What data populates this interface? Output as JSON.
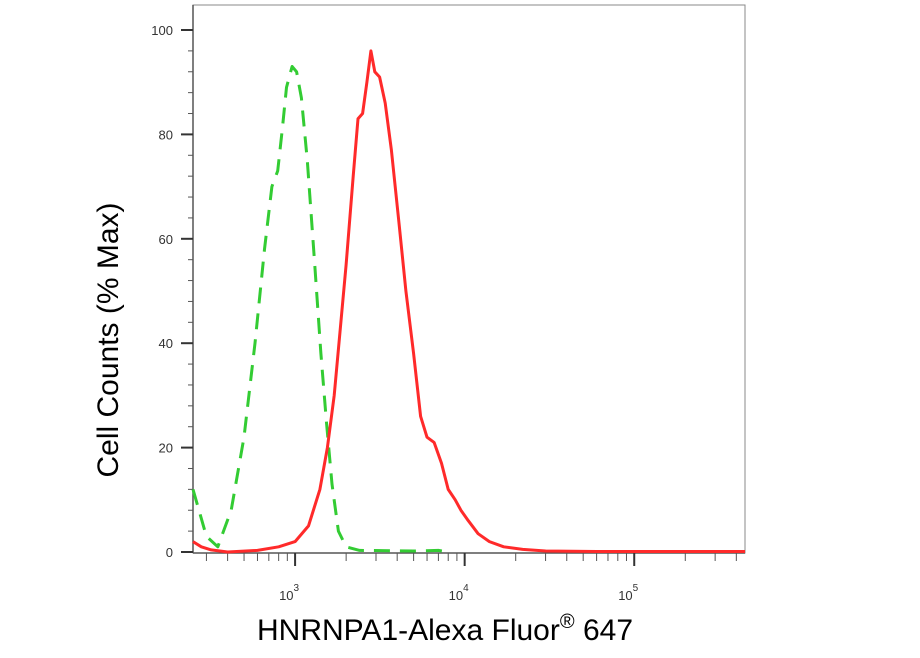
{
  "chart_data": {
    "type": "line",
    "xlabel_main": "HNRNPA1-Alexa Fluor",
    "xlabel_reg": "®",
    "xlabel_tail": " 647",
    "ylabel": "Cell Counts (% Max)",
    "x_scale": "log",
    "xlim": [
      250,
      450000
    ],
    "ylim": [
      0,
      100
    ],
    "y_ticks": [
      "0",
      "20",
      "40",
      "60",
      "80",
      "100"
    ],
    "x_ticks": [
      {
        "base": "10",
        "exp": "3",
        "value": 1000
      },
      {
        "base": "10",
        "exp": "4",
        "value": 10000
      },
      {
        "base": "10",
        "exp": "5",
        "value": 100000
      }
    ],
    "grid": false,
    "series": [
      {
        "color": "#33cc33",
        "style": "dashed",
        "points": [
          [
            250,
            12
          ],
          [
            300,
            3
          ],
          [
            350,
            1
          ],
          [
            420,
            8
          ],
          [
            500,
            22
          ],
          [
            580,
            40
          ],
          [
            660,
            58
          ],
          [
            730,
            70
          ],
          [
            790,
            73
          ],
          [
            840,
            81
          ],
          [
            890,
            89
          ],
          [
            960,
            93
          ],
          [
            1020,
            92
          ],
          [
            1090,
            87
          ],
          [
            1180,
            75
          ],
          [
            1300,
            56
          ],
          [
            1420,
            38
          ],
          [
            1530,
            25
          ],
          [
            1650,
            13
          ],
          [
            1800,
            4
          ],
          [
            2000,
            1
          ],
          [
            2400,
            0.3
          ],
          [
            5000,
            0.2
          ],
          [
            7000,
            0.3
          ],
          [
            8000,
            0
          ]
        ]
      },
      {
        "color": "#ff2a2a",
        "style": "solid",
        "points": [
          [
            250,
            2
          ],
          [
            280,
            1
          ],
          [
            320,
            0.4
          ],
          [
            400,
            0
          ],
          [
            600,
            0.3
          ],
          [
            800,
            1
          ],
          [
            1000,
            2
          ],
          [
            1200,
            5
          ],
          [
            1400,
            12
          ],
          [
            1550,
            20
          ],
          [
            1700,
            30
          ],
          [
            1850,
            43
          ],
          [
            2000,
            55
          ],
          [
            2200,
            72
          ],
          [
            2350,
            83
          ],
          [
            2500,
            84
          ],
          [
            2650,
            90
          ],
          [
            2800,
            96
          ],
          [
            2950,
            92
          ],
          [
            3150,
            91
          ],
          [
            3400,
            86
          ],
          [
            3700,
            77
          ],
          [
            4100,
            63
          ],
          [
            4500,
            50
          ],
          [
            5000,
            38
          ],
          [
            5500,
            26
          ],
          [
            6000,
            22
          ],
          [
            6600,
            21
          ],
          [
            7300,
            17
          ],
          [
            8000,
            12
          ],
          [
            8800,
            10
          ],
          [
            9500,
            8
          ],
          [
            10500,
            6
          ],
          [
            12000,
            3.5
          ],
          [
            14000,
            2
          ],
          [
            17000,
            1
          ],
          [
            22000,
            0.5
          ],
          [
            30000,
            0.2
          ],
          [
            60000,
            0.1
          ],
          [
            120000,
            0.1
          ],
          [
            450000,
            0.1
          ]
        ]
      }
    ]
  }
}
